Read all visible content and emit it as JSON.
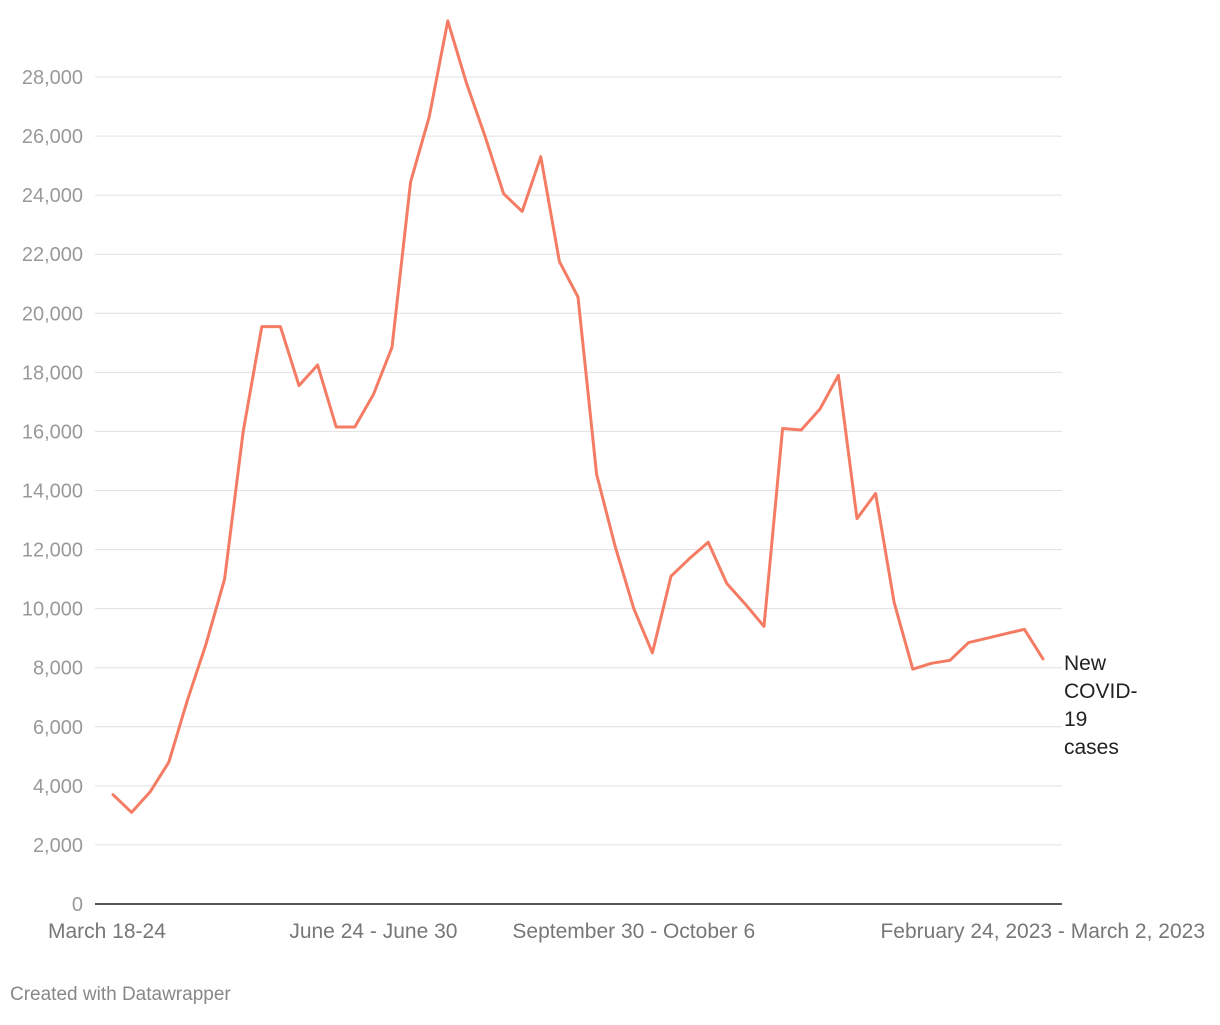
{
  "chart_data": {
    "type": "line",
    "title": "",
    "xlabel": "",
    "ylabel": "",
    "ylim": [
      0,
      30000
    ],
    "grid": true,
    "y_ticks": [
      "0",
      "2,000",
      "4,000",
      "6,000",
      "8,000",
      "10,000",
      "12,000",
      "14,000",
      "16,000",
      "18,000",
      "20,000",
      "22,000",
      "24,000",
      "26,000",
      "28,000"
    ],
    "x_tick_labels": [
      {
        "index": 0,
        "label": "March 18-24"
      },
      {
        "index": 14,
        "label": "June 24 - June 30"
      },
      {
        "index": 28,
        "label": "September 30 - October 6"
      },
      {
        "index": 49,
        "label": "February 24, 2023 - March 2, 2023"
      }
    ],
    "series": [
      {
        "name": "New COVID-19 cases",
        "color": "#f47c64",
        "values": [
          3700,
          3100,
          3800,
          4800,
          6900,
          8800,
          11000,
          16000,
          19550,
          19550,
          17550,
          18250,
          16150,
          16150,
          17250,
          18850,
          24450,
          26650,
          29900,
          27800,
          26000,
          24050,
          23450,
          25300,
          21750,
          20550,
          14550,
          12100,
          10000,
          8500,
          11100,
          11700,
          12250,
          10850,
          10150,
          9400,
          16100,
          16050,
          16750,
          17900,
          13050,
          13900,
          10200,
          7950,
          8150,
          8250,
          8850,
          9000,
          9150,
          9300,
          8300
        ]
      }
    ]
  },
  "series_label_lines": [
    "New",
    "COVID-",
    "19",
    "cases"
  ],
  "footer": {
    "credit": "Created with Datawrapper"
  }
}
